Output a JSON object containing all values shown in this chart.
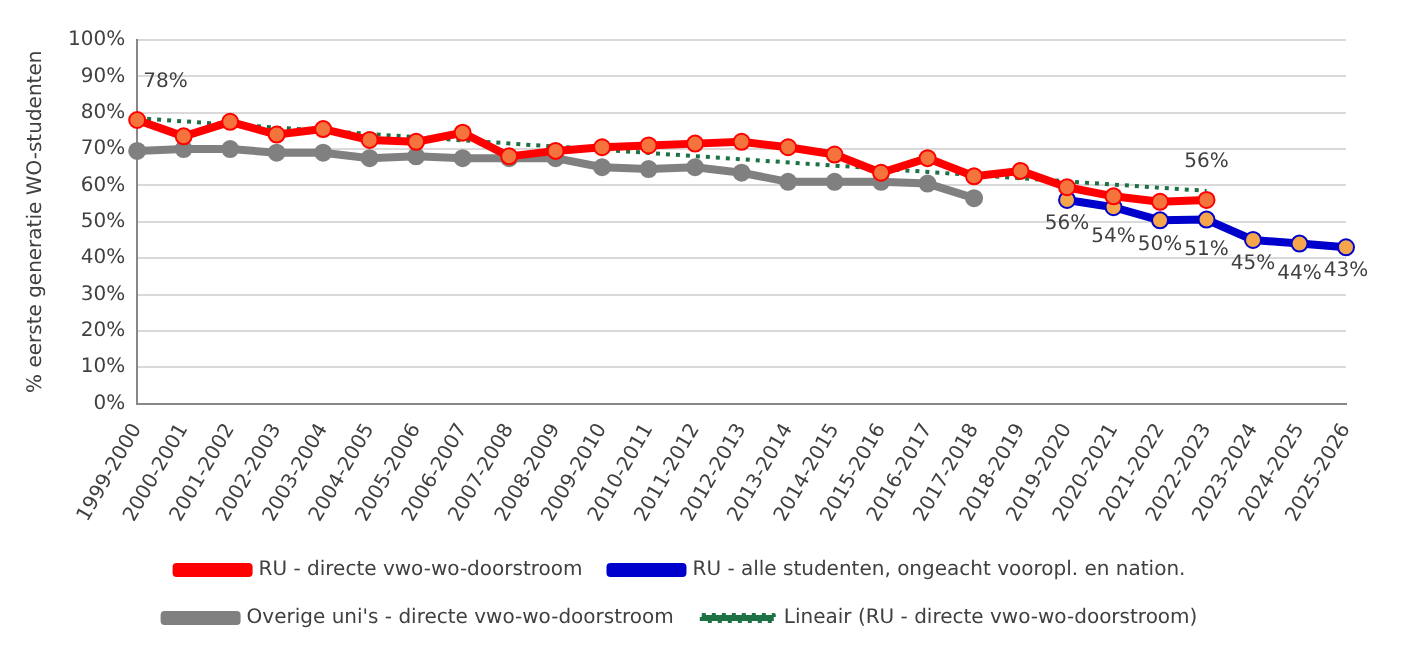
{
  "chart_data": {
    "type": "line",
    "ylabel": "% eerste generatie WO-studenten",
    "categories": [
      "1999-2000",
      "2000-2001",
      "2001-2002",
      "2002-2003",
      "2003-2004",
      "2004-2005",
      "2005-2006",
      "2006-2007",
      "2007-2008",
      "2008-2009",
      "2009-2010",
      "2010-2011",
      "2011-2012",
      "2012-2013",
      "2013-2014",
      "2014-2015",
      "2015-2016",
      "2016-2017",
      "2017-2018",
      "2018-2019",
      "2019-2020",
      "2020-2021",
      "2021-2022",
      "2022-2023",
      "2023-2024",
      "2024-2025",
      "2025-2026"
    ],
    "series": [
      {
        "name": "RU - directe vwo-wo-doorstroom",
        "color": "#ff0000",
        "marker": "circle",
        "values": [
          78,
          73.5,
          77.5,
          74,
          75.5,
          72.5,
          72,
          74.5,
          68,
          69.5,
          70.5,
          71,
          71.5,
          72,
          70.5,
          68.5,
          63.5,
          67.5,
          62.5,
          64,
          59.5,
          57,
          55.5,
          56,
          null,
          null,
          null
        ],
        "value_labels": [
          "78%",
          null,
          null,
          null,
          null,
          null,
          null,
          null,
          null,
          null,
          null,
          null,
          null,
          null,
          null,
          null,
          null,
          null,
          null,
          null,
          null,
          null,
          null,
          "56%",
          null,
          null,
          null
        ]
      },
      {
        "name": "RU - alle studenten, ongeacht vooropl. en nation.",
        "color": "#0000cc",
        "marker": "circle",
        "values": [
          null,
          null,
          null,
          null,
          null,
          null,
          null,
          null,
          null,
          null,
          null,
          null,
          null,
          null,
          null,
          null,
          null,
          null,
          null,
          null,
          56,
          54,
          50.4,
          50.6,
          45,
          44,
          43
        ],
        "value_labels": [
          null,
          null,
          null,
          null,
          null,
          null,
          null,
          null,
          null,
          null,
          null,
          null,
          null,
          null,
          null,
          null,
          null,
          null,
          null,
          null,
          "56%",
          "54%",
          "50%",
          "51%",
          "45%",
          "44%",
          "43%"
        ]
      },
      {
        "name": "Overige uni's - directe vwo-wo-doorstroom",
        "color": "#808080",
        "marker": "circle",
        "values": [
          69.5,
          70,
          70,
          69,
          69,
          67.5,
          68,
          67.5,
          67.5,
          67.5,
          65,
          64.5,
          65,
          63.5,
          61,
          61,
          61,
          60.5,
          56.5,
          null,
          null,
          null,
          null,
          null,
          null,
          null,
          null
        ]
      },
      {
        "name": "Lineair (RU - directe vwo-wo-doorstroom)",
        "color": "#1e7145",
        "marker": "none",
        "line_style": "dotted",
        "values": [
          78.5,
          null,
          null,
          null,
          null,
          null,
          null,
          null,
          null,
          null,
          null,
          null,
          null,
          null,
          null,
          null,
          null,
          null,
          null,
          null,
          null,
          null,
          null,
          58.5,
          null,
          null,
          null
        ]
      }
    ],
    "ylim": [
      0,
      100
    ],
    "yticks": [
      {
        "value": 0,
        "label": "0%"
      },
      {
        "value": 10,
        "label": "10%"
      },
      {
        "value": 20,
        "label": "20%"
      },
      {
        "value": 30,
        "label": "30%"
      },
      {
        "value": 40,
        "label": "40%"
      },
      {
        "value": 50,
        "label": "50%"
      },
      {
        "value": 60,
        "label": "60%"
      },
      {
        "value": 70,
        "label": "70%"
      },
      {
        "value": 80,
        "label": "80%"
      },
      {
        "value": 90,
        "label": "90%"
      },
      {
        "value": 100,
        "label": "100%"
      }
    ],
    "grid": "y",
    "legend": "bottom"
  }
}
